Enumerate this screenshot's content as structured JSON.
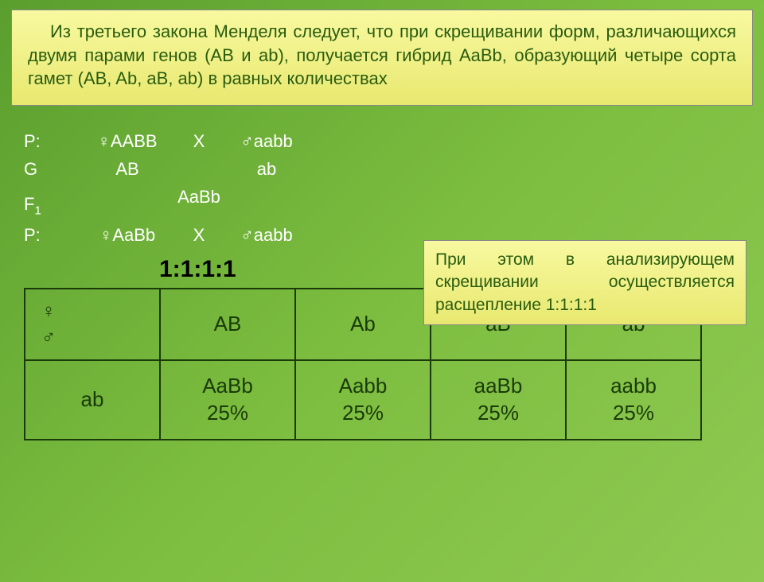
{
  "header": {
    "text": "Из третьего закона Менделя следует, что при скрещивании форм, различающихся двумя парами генов (AB и ab), получается гибрид AaBb, образующий четыре сорта гамет (AB, Ab, aB, ab) в равных количествах"
  },
  "cross": {
    "rows": [
      {
        "label": "P:",
        "left": "♀AABB",
        "mid": "X",
        "right": "♂aabb"
      },
      {
        "label": "G",
        "left": "AB",
        "mid": "",
        "right": "ab"
      },
      {
        "label": "F1",
        "left": "",
        "mid": "AaBb",
        "right": ""
      },
      {
        "label": "P:",
        "left": "♀AaBb",
        "mid": "X",
        "right": "♂aabb"
      }
    ]
  },
  "note": {
    "text": "При этом в анализирующем скрещивании осуществляется расщепление 1:1:1:1"
  },
  "ratio": "1:1:1:1",
  "punnett": {
    "corner_female": "♀",
    "corner_male": "♂",
    "top_headers": [
      "AB",
      "Ab",
      "aB",
      "ab"
    ],
    "left_header": "ab",
    "cells": [
      {
        "genotype": "AaBb",
        "pct": "25%"
      },
      {
        "genotype": "Aabb",
        "pct": "25%"
      },
      {
        "genotype": "aaBb",
        "pct": "25%"
      },
      {
        "genotype": "aabb",
        "pct": "25%"
      }
    ]
  },
  "colors": {
    "bg_gradient_from": "#5a9e2e",
    "bg_gradient_to": "#8fc952",
    "box_bg_from": "#f8f9a0",
    "box_bg_to": "#e8e870",
    "box_text": "#2a5c0f",
    "cross_text": "#ffffff",
    "ratio_text": "#000000",
    "table_border": "#1a3a0a",
    "table_text": "#1a3a0a"
  },
  "typography": {
    "body_fontsize": 22,
    "ratio_fontsize": 30,
    "table_fontsize": 26
  }
}
